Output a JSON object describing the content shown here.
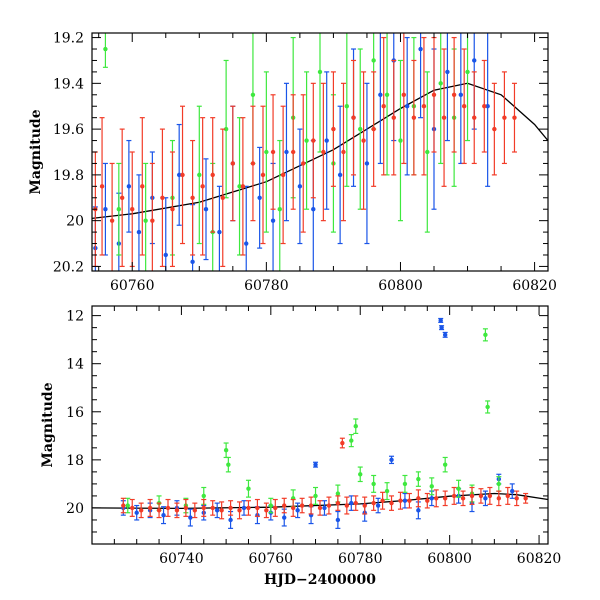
{
  "chart_data": [
    {
      "type": "scatter",
      "panel": "top",
      "title": "",
      "xlabel": "",
      "ylabel": "Magnitude",
      "xlim": [
        60754,
        60822
      ],
      "ylim": [
        20.22,
        19.18
      ],
      "y_inverted": true,
      "x_ticks": [
        60760,
        60780,
        60800,
        60820
      ],
      "x_tick_labels": [
        "60760",
        "60780",
        "60800",
        "60820"
      ],
      "y_ticks": [
        19.2,
        19.4,
        19.6,
        19.8,
        20.0,
        20.2
      ],
      "y_tick_labels": [
        "19.2",
        "19.4",
        "19.6",
        "19.8",
        "20",
        "20.2"
      ],
      "grid": false,
      "legend": "none",
      "colors": {
        "blue": "#1a55e8",
        "green": "#3ee83e",
        "red": "#f23c28",
        "model": "#000000"
      },
      "model_curve": {
        "color": "black",
        "x": [
          60754,
          60760,
          60770,
          60780,
          60790,
          60800,
          60805,
          60810,
          60815,
          60820,
          60822
        ],
        "y": [
          19.99,
          19.97,
          19.92,
          19.83,
          19.69,
          19.51,
          19.43,
          19.4,
          19.45,
          19.58,
          19.65
        ]
      },
      "series": [
        {
          "color": "blue",
          "x": [
            60754.5,
            60756,
            60758,
            60759.5,
            60761,
            60763,
            60765,
            60767,
            60769,
            60771,
            60773,
            60775,
            60777,
            60779,
            60781,
            60783,
            60785,
            60787,
            60789,
            60791,
            60793,
            60795,
            60797,
            60799,
            60801,
            60803,
            60805,
            60807,
            60809,
            60811,
            60813
          ],
          "y": [
            20.12,
            19.95,
            20.1,
            19.85,
            20.05,
            19.9,
            20.15,
            19.8,
            20.18,
            19.95,
            20.05,
            19.75,
            20.1,
            19.9,
            20.0,
            19.7,
            19.85,
            19.95,
            19.65,
            19.8,
            19.55,
            19.75,
            19.45,
            19.3,
            19.5,
            19.25,
            19.6,
            19.35,
            19.45,
            19.3,
            19.5
          ],
          "err": [
            0.18,
            0.2,
            0.22,
            0.2,
            0.25,
            0.2,
            0.25,
            0.22,
            0.25,
            0.22,
            0.2,
            0.25,
            0.25,
            0.22,
            0.25,
            0.3,
            0.25,
            0.3,
            0.3,
            0.3,
            0.3,
            0.35,
            0.3,
            0.35,
            0.3,
            0.3,
            0.35,
            0.3,
            0.3,
            0.3,
            0.35
          ]
        },
        {
          "color": "green",
          "x": [
            60756,
            60758,
            60762,
            60766,
            60770,
            60772,
            60774,
            60776,
            60778,
            60780,
            60782,
            60784,
            60786,
            60788,
            60790,
            60792,
            60794,
            60796,
            60798,
            60800,
            60802,
            60804,
            60806,
            60808,
            60810
          ],
          "y": [
            19.25,
            19.95,
            20.0,
            19.9,
            19.8,
            20.05,
            19.6,
            19.85,
            19.45,
            19.7,
            19.95,
            19.55,
            19.65,
            19.35,
            19.75,
            19.5,
            19.6,
            19.3,
            19.45,
            19.65,
            19.5,
            19.7,
            19.4,
            19.55,
            19.35
          ],
          "err": [
            0.08,
            0.2,
            0.25,
            0.25,
            0.3,
            0.3,
            0.3,
            0.3,
            0.3,
            0.35,
            0.3,
            0.35,
            0.3,
            0.35,
            0.3,
            0.35,
            0.35,
            0.3,
            0.35,
            0.35,
            0.3,
            0.35,
            0.35,
            0.3,
            0.3
          ]
        },
        {
          "color": "red",
          "x": [
            60754.5,
            60755.5,
            60757,
            60758.5,
            60760,
            60761.5,
            60763,
            60764.5,
            60766,
            60767.5,
            60769,
            60770.5,
            60772,
            60773.5,
            60775,
            60776.5,
            60778,
            60779.5,
            60781,
            60782.5,
            60784,
            60785.5,
            60787,
            60788.5,
            60790,
            60791.5,
            60793,
            60794.5,
            60796,
            60797.5,
            60799,
            60800.5,
            60802,
            60803.5,
            60805,
            60806.5,
            60808,
            60809.5,
            60811,
            60812.5,
            60814,
            60815.5,
            60817
          ],
          "y": [
            19.95,
            19.85,
            20.0,
            19.9,
            19.95,
            19.85,
            20.0,
            19.9,
            19.95,
            19.8,
            19.9,
            19.85,
            19.8,
            19.9,
            19.75,
            19.85,
            19.75,
            19.8,
            19.7,
            19.8,
            19.7,
            19.75,
            19.65,
            19.7,
            19.6,
            19.7,
            19.55,
            19.65,
            19.6,
            19.5,
            19.55,
            19.45,
            19.55,
            19.5,
            19.45,
            19.55,
            19.45,
            19.5,
            19.55,
            19.5,
            19.6,
            19.55,
            19.55
          ],
          "err": [
            0.25,
            0.3,
            0.25,
            0.3,
            0.25,
            0.3,
            0.25,
            0.3,
            0.25,
            0.3,
            0.25,
            0.3,
            0.25,
            0.3,
            0.25,
            0.3,
            0.25,
            0.3,
            0.25,
            0.3,
            0.25,
            0.3,
            0.25,
            0.3,
            0.25,
            0.3,
            0.25,
            0.3,
            0.25,
            0.3,
            0.25,
            0.3,
            0.25,
            0.3,
            0.25,
            0.3,
            0.25,
            0.25,
            0.2,
            0.2,
            0.2,
            0.2,
            0.15
          ]
        }
      ]
    },
    {
      "type": "scatter",
      "panel": "bottom",
      "title": "",
      "xlabel": "HJD−2400000",
      "ylabel": "Magnitude",
      "xlim": [
        60720,
        60822
      ],
      "ylim": [
        21.5,
        11.6
      ],
      "y_inverted": true,
      "x_ticks": [
        60740,
        60760,
        60780,
        60800,
        60820
      ],
      "x_tick_labels": [
        "60740",
        "60760",
        "60780",
        "60800",
        "60820"
      ],
      "y_ticks": [
        12,
        14,
        16,
        18,
        20
      ],
      "y_tick_labels": [
        "12",
        "14",
        "16",
        "18",
        "20"
      ],
      "grid": false,
      "legend": "none",
      "colors": {
        "blue": "#1a55e8",
        "green": "#3ee83e",
        "red": "#f23c28",
        "model": "#000000"
      },
      "model_curve": {
        "color": "black",
        "x": [
          60720,
          60740,
          60760,
          60780,
          60790,
          60800,
          60810,
          60815,
          60822
        ],
        "y": [
          20.0,
          20.02,
          19.97,
          19.83,
          19.69,
          19.51,
          19.4,
          19.45,
          19.65
        ]
      },
      "series": [
        {
          "color": "blue",
          "x": [
            60727,
            60730,
            60733,
            60736,
            60739,
            60742,
            60745,
            60748,
            60751,
            60754,
            60757,
            60760,
            60763,
            60766,
            60769,
            60770,
            60772,
            60775,
            60778,
            60781,
            60784,
            60787,
            60790,
            60793,
            60796,
            60798,
            60798.2,
            60799,
            60802,
            60805,
            60808,
            60811,
            60814
          ],
          "y": [
            20.0,
            20.2,
            20.1,
            20.3,
            20.0,
            20.4,
            20.2,
            20.1,
            20.5,
            20.0,
            20.3,
            20.2,
            20.4,
            20.1,
            20.3,
            18.2,
            20.0,
            20.5,
            19.8,
            20.2,
            19.9,
            18.0,
            19.7,
            20.1,
            19.6,
            12.2,
            12.5,
            12.8,
            19.5,
            19.8,
            19.6,
            18.8,
            19.3
          ],
          "err": [
            0.3,
            0.3,
            0.3,
            0.35,
            0.3,
            0.35,
            0.3,
            0.3,
            0.35,
            0.3,
            0.35,
            0.3,
            0.35,
            0.3,
            0.35,
            0.1,
            0.3,
            0.35,
            0.3,
            0.35,
            0.3,
            0.15,
            0.3,
            0.35,
            0.3,
            0.08,
            0.08,
            0.1,
            0.3,
            0.35,
            0.3,
            0.2,
            0.3
          ]
        },
        {
          "color": "green",
          "x": [
            60728,
            60735,
            60741,
            60745,
            60750,
            60750.5,
            60755,
            60760,
            60765,
            60770,
            60775,
            60778,
            60779,
            60780,
            60783,
            60786,
            60790,
            60793,
            60796,
            60799,
            60802,
            60805,
            60808,
            60808.5,
            60811
          ],
          "y": [
            19.9,
            19.8,
            19.9,
            19.5,
            17.6,
            18.2,
            19.2,
            19.9,
            19.6,
            19.5,
            19.4,
            17.2,
            16.6,
            18.6,
            19.0,
            19.3,
            19.0,
            18.8,
            19.1,
            18.2,
            19.2,
            19.4,
            12.8,
            15.8,
            19.0
          ],
          "err": [
            0.3,
            0.3,
            0.3,
            0.35,
            0.3,
            0.3,
            0.35,
            0.3,
            0.35,
            0.35,
            0.35,
            0.25,
            0.3,
            0.3,
            0.35,
            0.35,
            0.35,
            0.3,
            0.35,
            0.3,
            0.35,
            0.35,
            0.25,
            0.25,
            0.3
          ]
        },
        {
          "color": "red",
          "x": [
            60727,
            60729,
            60731,
            60733,
            60735,
            60737,
            60739,
            60741,
            60743,
            60745,
            60747,
            60749,
            60751,
            60753,
            60755,
            60757,
            60759,
            60761,
            60763,
            60765,
            60767,
            60769,
            60771,
            60773,
            60775,
            60776,
            60777,
            60779,
            60781,
            60783,
            60785,
            60787,
            60789,
            60791,
            60793,
            60795,
            60797,
            60799,
            60801,
            60803,
            60805,
            60807,
            60809,
            60811,
            60813,
            60815,
            60817
          ],
          "y": [
            19.9,
            20.0,
            20.1,
            20.0,
            20.1,
            20.0,
            20.1,
            20.0,
            20.1,
            20.0,
            20.0,
            20.1,
            20.0,
            20.1,
            20.0,
            20.0,
            20.1,
            20.0,
            19.9,
            20.0,
            19.9,
            19.9,
            20.0,
            19.9,
            19.8,
            17.3,
            19.9,
            19.8,
            19.9,
            19.8,
            19.7,
            19.8,
            19.7,
            19.7,
            19.6,
            19.7,
            19.6,
            19.6,
            19.5,
            19.6,
            19.5,
            19.5,
            19.5,
            19.6,
            19.5,
            19.6,
            19.6
          ],
          "err": [
            0.3,
            0.35,
            0.3,
            0.35,
            0.3,
            0.35,
            0.3,
            0.35,
            0.3,
            0.35,
            0.3,
            0.35,
            0.3,
            0.35,
            0.3,
            0.35,
            0.3,
            0.35,
            0.3,
            0.35,
            0.3,
            0.35,
            0.3,
            0.35,
            0.3,
            0.2,
            0.35,
            0.3,
            0.35,
            0.3,
            0.35,
            0.3,
            0.35,
            0.3,
            0.35,
            0.3,
            0.35,
            0.3,
            0.35,
            0.3,
            0.35,
            0.3,
            0.35,
            0.3,
            0.35,
            0.3,
            0.2
          ]
        }
      ]
    }
  ]
}
